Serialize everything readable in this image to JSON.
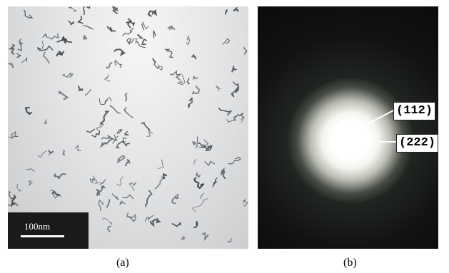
{
  "panel_a": {
    "scale_label": "100nm",
    "caption": "(a)"
  },
  "panel_b": {
    "ring_labels": [
      "(112)",
      "(222)"
    ],
    "caption": "(b)"
  },
  "colors": {
    "tem_background": "#e3e4e5",
    "particle": "#3a3f44",
    "diffraction_background": "#111311",
    "center_glow": "#ffffff"
  }
}
